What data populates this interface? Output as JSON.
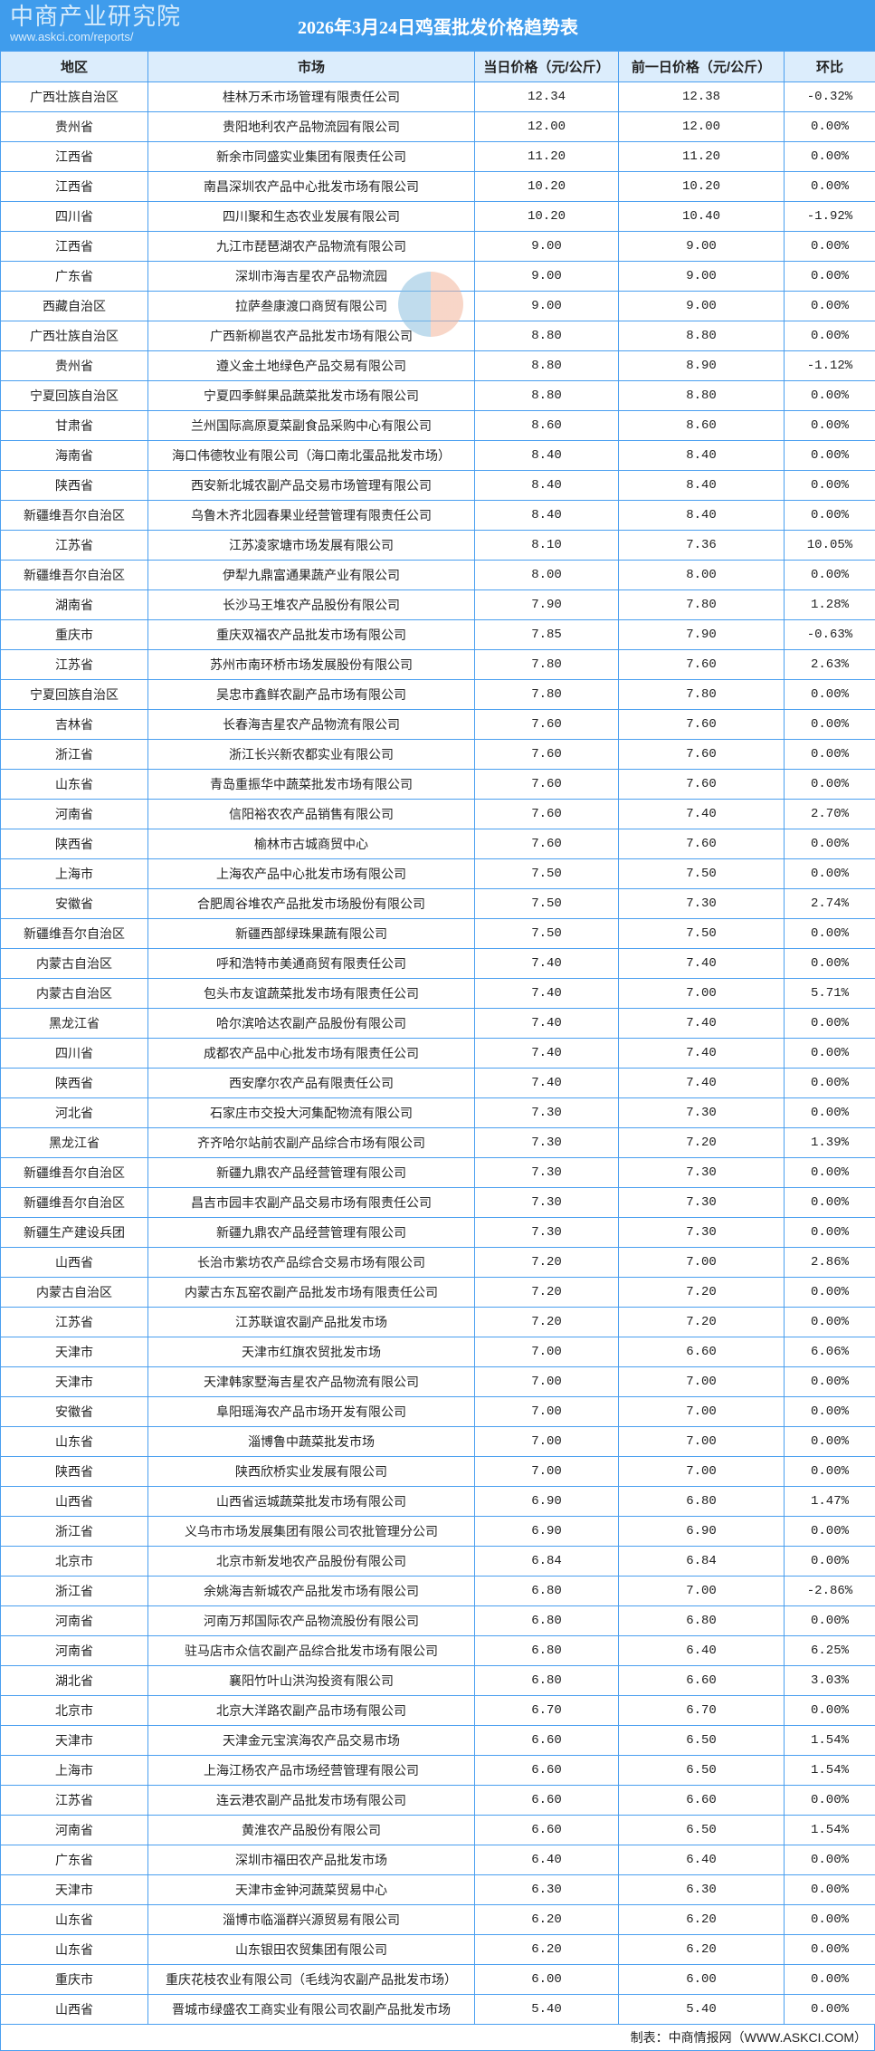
{
  "title": "2026年3月24日鸡蛋批发价格趋势表",
  "colors": {
    "title_bg": "#3f9cec",
    "header_bg": "#dcedfc",
    "grid": "#4a9ff0"
  },
  "headers": [
    "地区",
    "市场",
    "当日价格（元/公斤）",
    "前一日价格（元/公斤）",
    "环比"
  ],
  "rows": [
    [
      "广西壮族自治区",
      "桂林万禾市场管理有限责任公司",
      "12.34",
      "12.38",
      "-0.32%"
    ],
    [
      "贵州省",
      "贵阳地利农产品物流园有限公司",
      "12.00",
      "12.00",
      "0.00%"
    ],
    [
      "江西省",
      "新余市同盛实业集团有限责任公司",
      "11.20",
      "11.20",
      "0.00%"
    ],
    [
      "江西省",
      "南昌深圳农产品中心批发市场有限公司",
      "10.20",
      "10.20",
      "0.00%"
    ],
    [
      "四川省",
      "四川聚和生态农业发展有限公司",
      "10.20",
      "10.40",
      "-1.92%"
    ],
    [
      "江西省",
      "九江市琵琶湖农产品物流有限公司",
      "9.00",
      "9.00",
      "0.00%"
    ],
    [
      "广东省",
      "深圳市海吉星农产品物流园",
      "9.00",
      "9.00",
      "0.00%"
    ],
    [
      "西藏自治区",
      "拉萨叁康渡口商贸有限公司",
      "9.00",
      "9.00",
      "0.00%"
    ],
    [
      "广西壮族自治区",
      "广西新柳邕农产品批发市场有限公司",
      "8.80",
      "8.80",
      "0.00%"
    ],
    [
      "贵州省",
      "遵义金土地绿色产品交易有限公司",
      "8.80",
      "8.90",
      "-1.12%"
    ],
    [
      "宁夏回族自治区",
      "宁夏四季鲜果品蔬菜批发市场有限公司",
      "8.80",
      "8.80",
      "0.00%"
    ],
    [
      "甘肃省",
      "兰州国际高原夏菜副食品采购中心有限公司",
      "8.60",
      "8.60",
      "0.00%"
    ],
    [
      "海南省",
      "海口伟德牧业有限公司（海口南北蛋品批发市场）",
      "8.40",
      "8.40",
      "0.00%"
    ],
    [
      "陕西省",
      "西安新北城农副产品交易市场管理有限公司",
      "8.40",
      "8.40",
      "0.00%"
    ],
    [
      "新疆维吾尔自治区",
      "乌鲁木齐北园春果业经营管理有限责任公司",
      "8.40",
      "8.40",
      "0.00%"
    ],
    [
      "江苏省",
      "江苏凌家塘市场发展有限公司",
      "8.10",
      "7.36",
      "10.05%"
    ],
    [
      "新疆维吾尔自治区",
      "伊犁九鼎富通果蔬产业有限公司",
      "8.00",
      "8.00",
      "0.00%"
    ],
    [
      "湖南省",
      "长沙马王堆农产品股份有限公司",
      "7.90",
      "7.80",
      "1.28%"
    ],
    [
      "重庆市",
      "重庆双福农产品批发市场有限公司",
      "7.85",
      "7.90",
      "-0.63%"
    ],
    [
      "江苏省",
      "苏州市南环桥市场发展股份有限公司",
      "7.80",
      "7.60",
      "2.63%"
    ],
    [
      "宁夏回族自治区",
      "吴忠市鑫鲜农副产品市场有限公司",
      "7.80",
      "7.80",
      "0.00%"
    ],
    [
      "吉林省",
      "长春海吉星农产品物流有限公司",
      "7.60",
      "7.60",
      "0.00%"
    ],
    [
      "浙江省",
      "浙江长兴新农都实业有限公司",
      "7.60",
      "7.60",
      "0.00%"
    ],
    [
      "山东省",
      "青岛重振华中蔬菜批发市场有限公司",
      "7.60",
      "7.60",
      "0.00%"
    ],
    [
      "河南省",
      "信阳裕农农产品销售有限公司",
      "7.60",
      "7.40",
      "2.70%"
    ],
    [
      "陕西省",
      "榆林市古城商贸中心",
      "7.60",
      "7.60",
      "0.00%"
    ],
    [
      "上海市",
      "上海农产品中心批发市场有限公司",
      "7.50",
      "7.50",
      "0.00%"
    ],
    [
      "安徽省",
      "合肥周谷堆农产品批发市场股份有限公司",
      "7.50",
      "7.30",
      "2.74%"
    ],
    [
      "新疆维吾尔自治区",
      "新疆西部绿珠果蔬有限公司",
      "7.50",
      "7.50",
      "0.00%"
    ],
    [
      "内蒙古自治区",
      "呼和浩特市美通商贸有限责任公司",
      "7.40",
      "7.40",
      "0.00%"
    ],
    [
      "内蒙古自治区",
      "包头市友谊蔬菜批发市场有限责任公司",
      "7.40",
      "7.00",
      "5.71%"
    ],
    [
      "黑龙江省",
      "哈尔滨哈达农副产品股份有限公司",
      "7.40",
      "7.40",
      "0.00%"
    ],
    [
      "四川省",
      "成都农产品中心批发市场有限责任公司",
      "7.40",
      "7.40",
      "0.00%"
    ],
    [
      "陕西省",
      "西安摩尔农产品有限责任公司",
      "7.40",
      "7.40",
      "0.00%"
    ],
    [
      "河北省",
      "石家庄市交投大河集配物流有限公司",
      "7.30",
      "7.30",
      "0.00%"
    ],
    [
      "黑龙江省",
      "齐齐哈尔站前农副产品综合市场有限公司",
      "7.30",
      "7.20",
      "1.39%"
    ],
    [
      "新疆维吾尔自治区",
      "新疆九鼎农产品经营管理有限公司",
      "7.30",
      "7.30",
      "0.00%"
    ],
    [
      "新疆维吾尔自治区",
      "昌吉市园丰农副产品交易市场有限责任公司",
      "7.30",
      "7.30",
      "0.00%"
    ],
    [
      "新疆生产建设兵团",
      "新疆九鼎农产品经营管理有限公司",
      "7.30",
      "7.30",
      "0.00%"
    ],
    [
      "山西省",
      "长治市紫坊农产品综合交易市场有限公司",
      "7.20",
      "7.00",
      "2.86%"
    ],
    [
      "内蒙古自治区",
      "内蒙古东瓦窑农副产品批发市场有限责任公司",
      "7.20",
      "7.20",
      "0.00%"
    ],
    [
      "江苏省",
      "江苏联谊农副产品批发市场",
      "7.20",
      "7.20",
      "0.00%"
    ],
    [
      "天津市",
      "天津市红旗农贸批发市场",
      "7.00",
      "6.60",
      "6.06%"
    ],
    [
      "天津市",
      "天津韩家墅海吉星农产品物流有限公司",
      "7.00",
      "7.00",
      "0.00%"
    ],
    [
      "安徽省",
      "阜阳瑶海农产品市场开发有限公司",
      "7.00",
      "7.00",
      "0.00%"
    ],
    [
      "山东省",
      "淄博鲁中蔬菜批发市场",
      "7.00",
      "7.00",
      "0.00%"
    ],
    [
      "陕西省",
      "陕西欣桥实业发展有限公司",
      "7.00",
      "7.00",
      "0.00%"
    ],
    [
      "山西省",
      "山西省运城蔬菜批发市场有限公司",
      "6.90",
      "6.80",
      "1.47%"
    ],
    [
      "浙江省",
      "义乌市市场发展集团有限公司农批管理分公司",
      "6.90",
      "6.90",
      "0.00%"
    ],
    [
      "北京市",
      "北京市新发地农产品股份有限公司",
      "6.84",
      "6.84",
      "0.00%"
    ],
    [
      "浙江省",
      "余姚海吉新城农产品批发市场有限公司",
      "6.80",
      "7.00",
      "-2.86%"
    ],
    [
      "河南省",
      "河南万邦国际农产品物流股份有限公司",
      "6.80",
      "6.80",
      "0.00%"
    ],
    [
      "河南省",
      "驻马店市众信农副产品综合批发市场有限公司",
      "6.80",
      "6.40",
      "6.25%"
    ],
    [
      "湖北省",
      "襄阳竹叶山洪沟投资有限公司",
      "6.80",
      "6.60",
      "3.03%"
    ],
    [
      "北京市",
      "北京大洋路农副产品市场有限公司",
      "6.70",
      "6.70",
      "0.00%"
    ],
    [
      "天津市",
      "天津金元宝滨海农产品交易市场",
      "6.60",
      "6.50",
      "1.54%"
    ],
    [
      "上海市",
      "上海江杨农产品市场经营管理有限公司",
      "6.60",
      "6.50",
      "1.54%"
    ],
    [
      "江苏省",
      "连云港农副产品批发市场有限公司",
      "6.60",
      "6.60",
      "0.00%"
    ],
    [
      "河南省",
      "黄淮农产品股份有限公司",
      "6.60",
      "6.50",
      "1.54%"
    ],
    [
      "广东省",
      "深圳市福田农产品批发市场",
      "6.40",
      "6.40",
      "0.00%"
    ],
    [
      "天津市",
      "天津市金钟河蔬菜贸易中心",
      "6.30",
      "6.30",
      "0.00%"
    ],
    [
      "山东省",
      "淄博市临淄群兴源贸易有限公司",
      "6.20",
      "6.20",
      "0.00%"
    ],
    [
      "山东省",
      "山东银田农贸集团有限公司",
      "6.20",
      "6.20",
      "0.00%"
    ],
    [
      "重庆市",
      "重庆花枝农业有限公司（毛线沟农副产品批发市场）",
      "6.00",
      "6.00",
      "0.00%"
    ],
    [
      "山西省",
      "晋城市绿盛农工商实业有限公司农副产品批发市场",
      "5.40",
      "5.40",
      "0.00%"
    ]
  ],
  "footer": "制表：中商情报网（WWW.ASKCI.COM）",
  "watermark": {
    "name": "中商产业研究院",
    "url": "www.askci.com/reports/"
  }
}
